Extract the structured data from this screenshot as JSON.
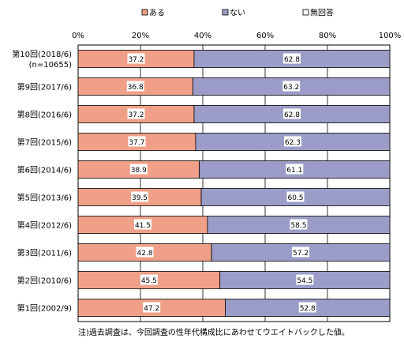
{
  "chart_data": {
    "type": "bar",
    "orientation": "horizontal",
    "stacked": true,
    "percent": true,
    "title": "",
    "xlabel": "",
    "ylabel": "",
    "xlim": [
      0,
      100
    ],
    "x_ticks": [
      "0%",
      "20%",
      "40%",
      "60%",
      "80%",
      "100%"
    ],
    "grid": true,
    "legend_position": "top",
    "categories": [
      [
        "第10回(2018/6)",
        "(n=10655)"
      ],
      [
        "第9回(2017/6)"
      ],
      [
        "第8回(2016/6)"
      ],
      [
        "第7回(2015/6)"
      ],
      [
        "第6回(2014/6)"
      ],
      [
        "第5回(2013/6)"
      ],
      [
        "第4回(2012/6)"
      ],
      [
        "第3回(2011/6)"
      ],
      [
        "第2回(2010/6)"
      ],
      [
        "第1回(2002/9)"
      ]
    ],
    "series": [
      {
        "name": "ある",
        "color": "#f0a088",
        "values": [
          37.2,
          36.8,
          37.2,
          37.7,
          38.9,
          39.5,
          41.5,
          42.8,
          45.5,
          47.2
        ]
      },
      {
        "name": "ない",
        "color": "#9b9dc8",
        "values": [
          62.8,
          63.2,
          62.8,
          62.3,
          61.1,
          60.5,
          58.5,
          57.2,
          54.5,
          52.8
        ]
      },
      {
        "name": "無回答",
        "color": "#f4f4fa",
        "values": [
          0,
          0,
          0,
          0,
          0,
          0,
          0,
          0,
          0,
          0
        ]
      }
    ],
    "note": "注)過去調査は、今回調査の性年代構成比にあわせてウエイトバックした値。"
  }
}
